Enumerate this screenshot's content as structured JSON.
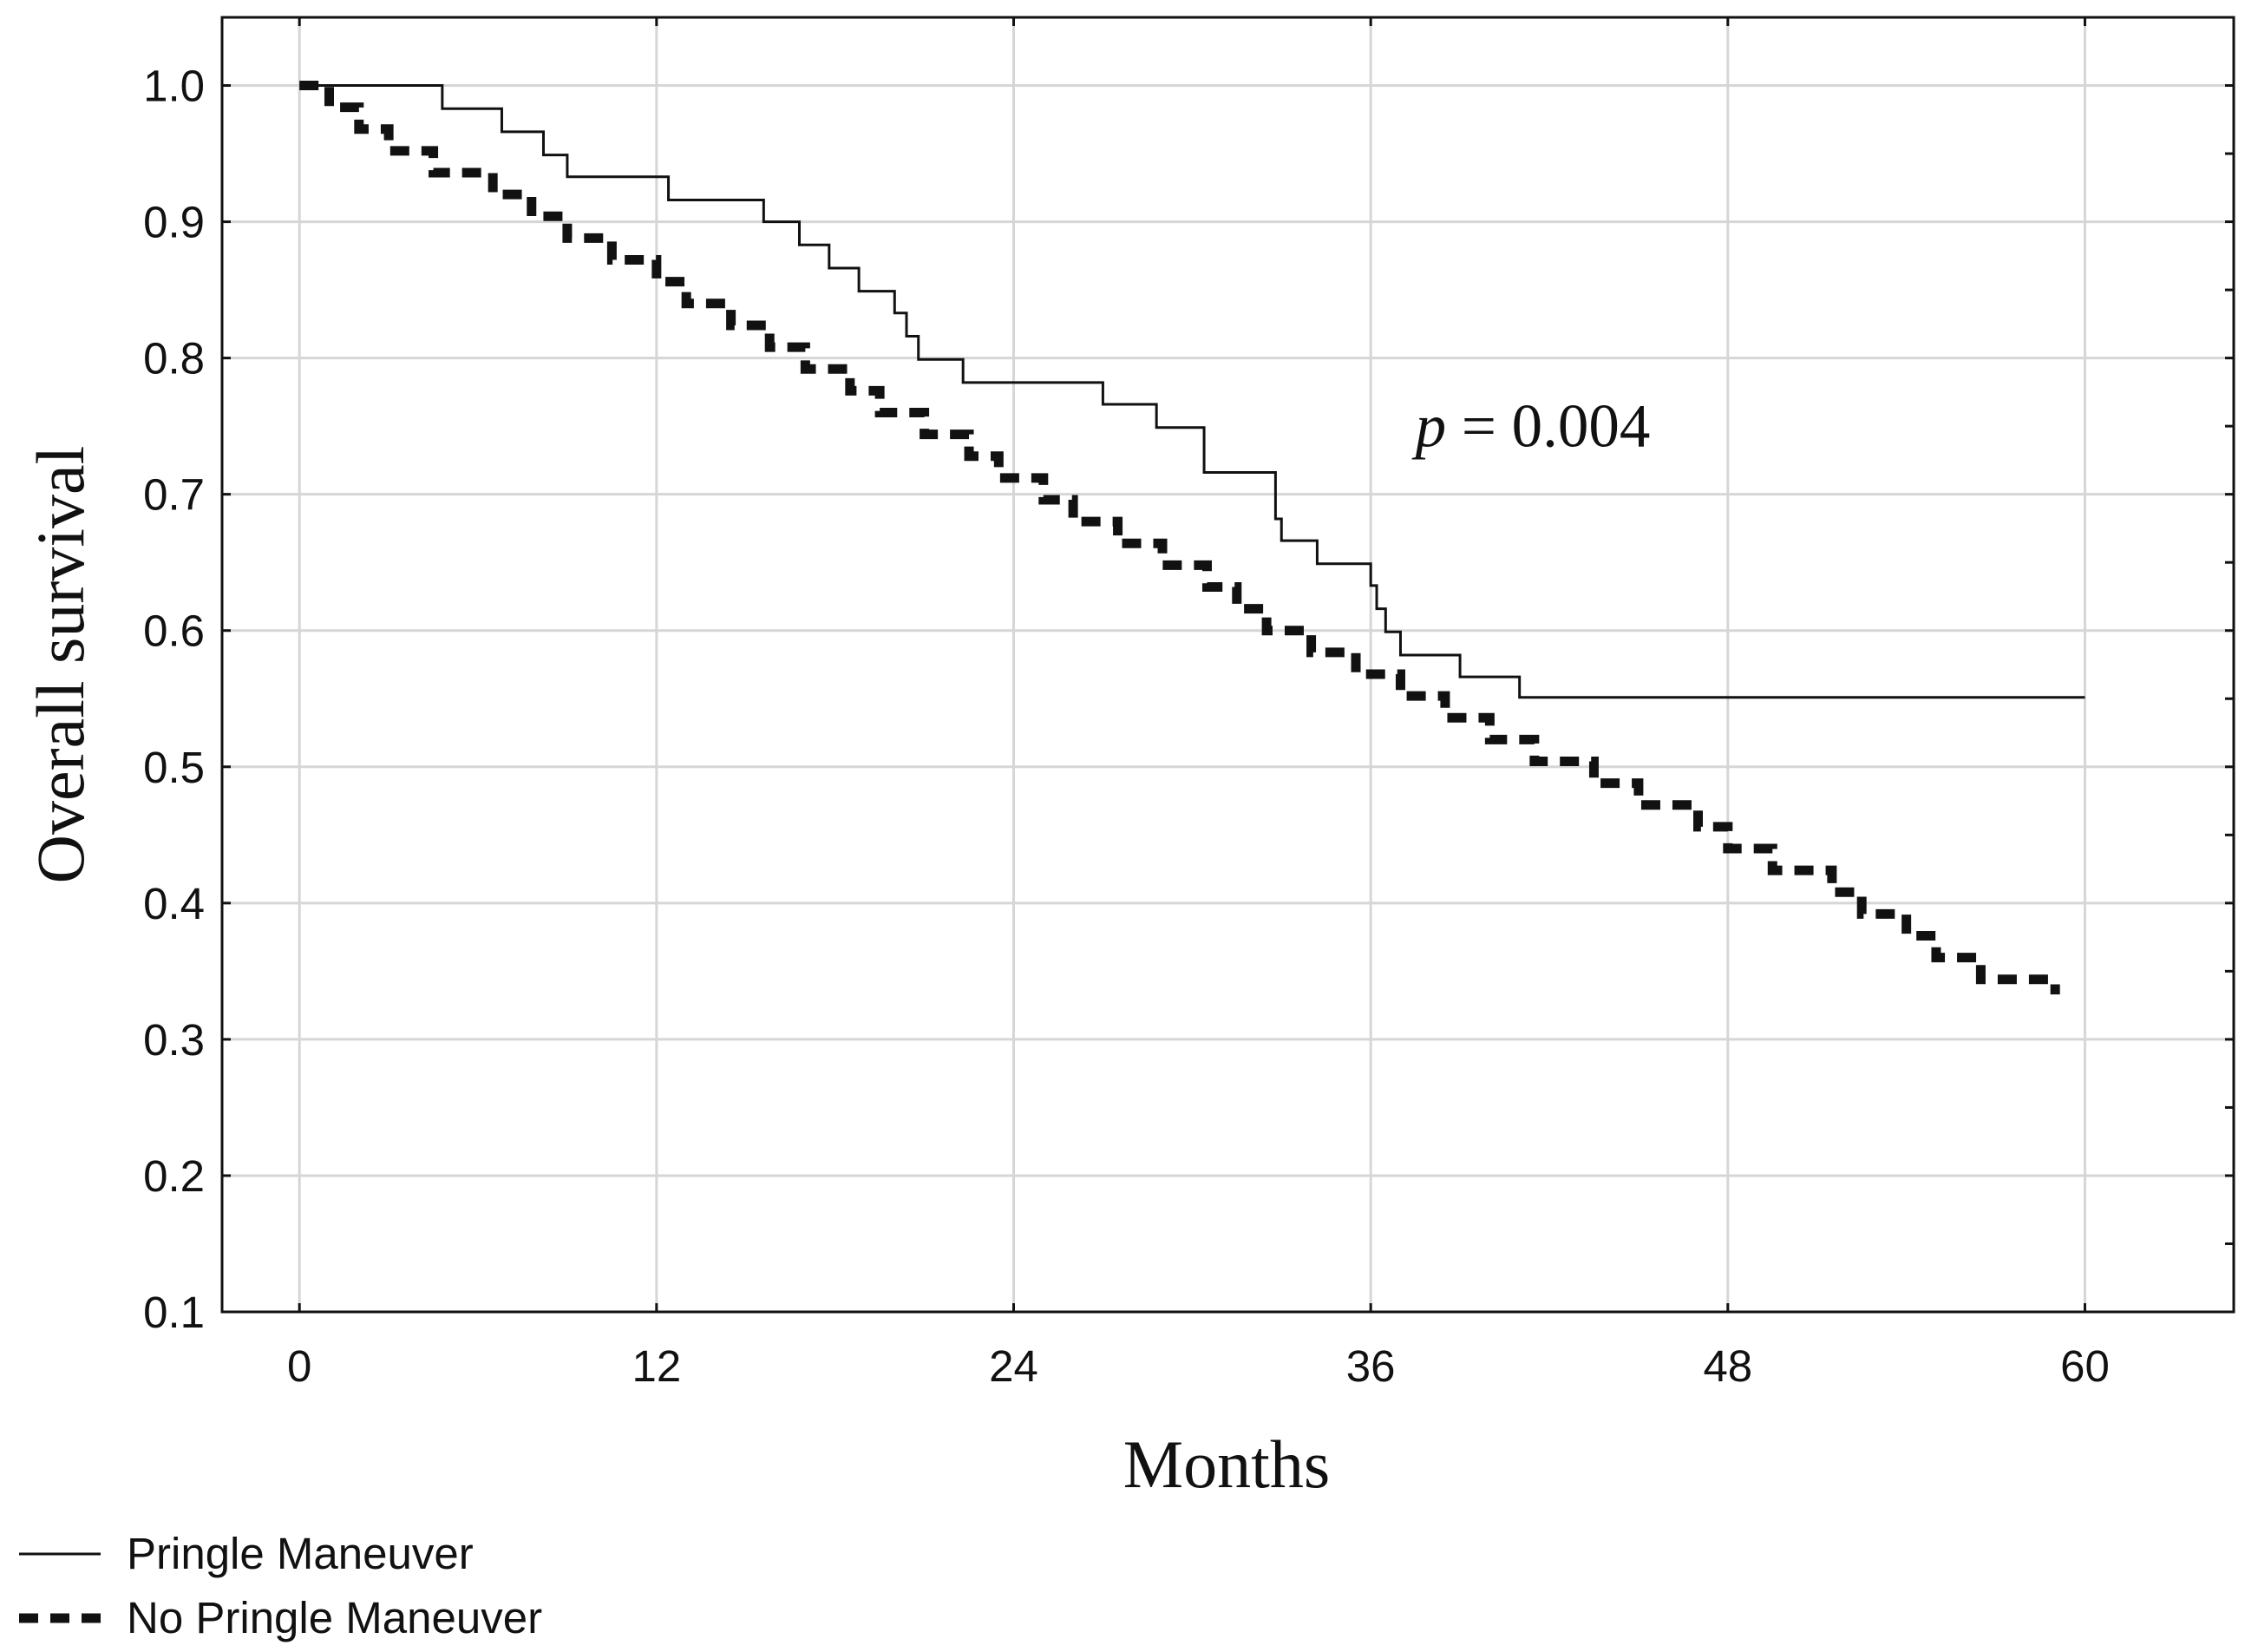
{
  "chart_data": {
    "type": "line",
    "title": "",
    "xlabel": "Months",
    "ylabel": "Overall survival",
    "xlim": [
      -2.6,
      65
    ],
    "ylim": [
      0.1,
      1.05
    ],
    "x_ticks": [
      0,
      12,
      24,
      36,
      48,
      60
    ],
    "x_tick_labels": [
      "0",
      "12",
      "24",
      "36",
      "48",
      "60"
    ],
    "y_ticks": [
      0.1,
      0.2,
      0.3,
      0.4,
      0.5,
      0.6,
      0.7,
      0.8,
      0.9,
      1.0
    ],
    "y_tick_labels": [
      "0.1",
      "0.2",
      "0.3",
      "0.4",
      "0.5",
      "0.6",
      "0.7",
      "0.8",
      "0.9",
      "1.0"
    ],
    "grid": true,
    "legend_position": "bottom-left",
    "annotation": {
      "italic": "p",
      "rest": " = 0.004",
      "x": 37.5,
      "y": 0.735
    },
    "series": [
      {
        "name": "Pringle Maneuver",
        "style": "solid",
        "color": "#111111",
        "x": [
          0,
          4.8,
          6.8,
          8.2,
          9.0,
          12.4,
          15.6,
          16.8,
          17.8,
          18.8,
          20.0,
          20.4,
          20.8,
          22.3,
          24,
          27.0,
          28.8,
          30.4,
          32.8,
          33.0,
          33.5,
          34.2,
          35.0,
          36.0,
          36.2,
          36.5,
          37.0,
          38.0,
          39.0,
          41.0,
          42.0,
          60.0
        ],
        "y": [
          1.0,
          0.983,
          0.966,
          0.949,
          0.933,
          0.916,
          0.9,
          0.883,
          0.866,
          0.849,
          0.833,
          0.816,
          0.799,
          0.782,
          0.782,
          0.766,
          0.749,
          0.716,
          0.682,
          0.666,
          0.666,
          0.649,
          0.649,
          0.633,
          0.616,
          0.599,
          0.582,
          0.582,
          0.566,
          0.551,
          0.551,
          0.551
        ]
      },
      {
        "name": "No Pringle Maneuver",
        "style": "dashed",
        "color": "#111111",
        "x": [
          0,
          1.0,
          2.0,
          3.0,
          4.5,
          6.5,
          7.8,
          9.0,
          10.5,
          12.0,
          13.0,
          14.5,
          15.8,
          17.0,
          18.5,
          19.5,
          21.0,
          22.5,
          23.5,
          25.0,
          26.0,
          27.5,
          29.0,
          30.5,
          31.5,
          32.5,
          34.0,
          35.5,
          37.0,
          38.5,
          40.0,
          41.5,
          43.5,
          45.0,
          47.0,
          48.0,
          49.5,
          51.5,
          52.5,
          54.0,
          55.0,
          56.5,
          59.0
        ],
        "y": [
          1.0,
          0.984,
          0.968,
          0.952,
          0.936,
          0.92,
          0.904,
          0.888,
          0.872,
          0.856,
          0.84,
          0.824,
          0.808,
          0.792,
          0.776,
          0.76,
          0.744,
          0.728,
          0.712,
          0.696,
          0.68,
          0.664,
          0.648,
          0.632,
          0.616,
          0.6,
          0.584,
          0.568,
          0.552,
          0.536,
          0.52,
          0.504,
          0.488,
          0.472,
          0.456,
          0.44,
          0.424,
          0.408,
          0.392,
          0.376,
          0.36,
          0.344,
          0.333
        ]
      }
    ]
  }
}
